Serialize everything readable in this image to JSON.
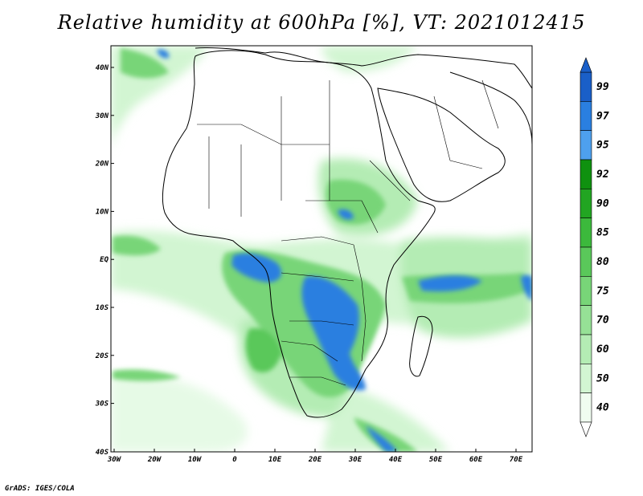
{
  "title": "Relative humidity at 600hPa [%], VT: 2021012415",
  "credit": "GrADS: IGES/COLA",
  "map": {
    "lon_range": [
      -30,
      75
    ],
    "lat_range": [
      -40,
      45
    ],
    "x_ticks": [
      "30W",
      "20W",
      "10W",
      "0",
      "10E",
      "20E",
      "30E",
      "40E",
      "50E",
      "60E",
      "70E"
    ],
    "y_ticks": [
      "40N",
      "30N",
      "20N",
      "10N",
      "EQ",
      "10S",
      "20S",
      "30S",
      "40S"
    ]
  },
  "colorbar": {
    "levels": [
      "40",
      "50",
      "60",
      "70",
      "75",
      "80",
      "85",
      "90",
      "92",
      "95",
      "97",
      "99"
    ],
    "colors": [
      "#f0fcf0",
      "#d2f5d2",
      "#b4ecb4",
      "#96e196",
      "#78d578",
      "#5ac85a",
      "#3cb93c",
      "#22a522",
      "#0f910f",
      "#4ea0ee",
      "#2a7fe0",
      "#1a5fc8"
    ]
  }
}
